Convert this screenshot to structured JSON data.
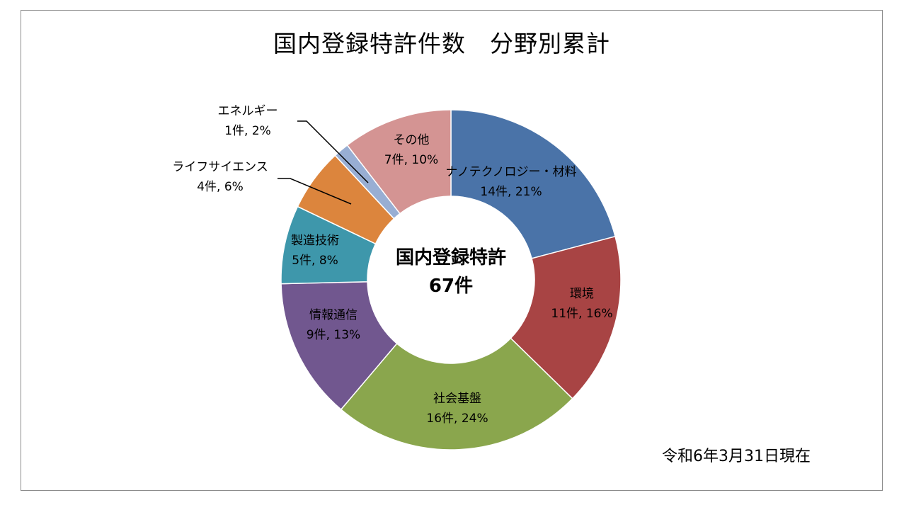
{
  "chart_data": {
    "type": "pie",
    "title": "国内登録特許件数　分野別累計",
    "center_label": [
      "国内登録特許",
      "67件"
    ],
    "total": 67,
    "slices": [
      {
        "name": "ナノテクノロジー・材料",
        "value": 14,
        "percent": 21,
        "label": "14件, 21%",
        "color": "#4a73a8"
      },
      {
        "name": "環境",
        "value": 11,
        "percent": 16,
        "label": "11件, 16%",
        "color": "#a84444"
      },
      {
        "name": "社会基盤",
        "value": 16,
        "percent": 24,
        "label": "16件, 24%",
        "color": "#8aa64d"
      },
      {
        "name": "情報通信",
        "value": 9,
        "percent": 13,
        "label": "9件, 13%",
        "color": "#71578f"
      },
      {
        "name": "製造技術",
        "value": 5,
        "percent": 8,
        "label": "5件, 8%",
        "color": "#3e97ab"
      },
      {
        "name": "ライフサイエンス",
        "value": 4,
        "percent": 6,
        "label": "4件, 6%",
        "color": "#dc853d"
      },
      {
        "name": "エネルギー",
        "value": 1,
        "percent": 2,
        "label": "1件, 2%",
        "color": "#98aed3"
      },
      {
        "name": "その他",
        "value": 7,
        "percent": 10,
        "label": "7件, 10%",
        "color": "#d49493"
      }
    ]
  },
  "footer_note": "令和6年3月31日現在"
}
